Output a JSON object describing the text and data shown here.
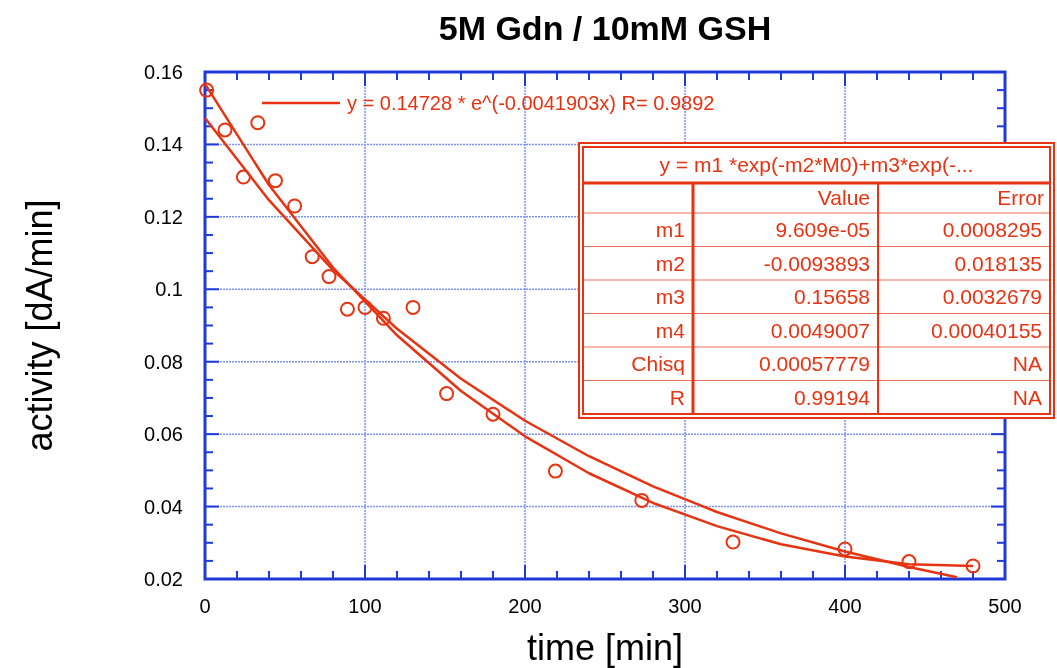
{
  "chart_data": {
    "type": "scatter",
    "title": "5M Gdn / 10mM GSH",
    "xlabel": "time [min]",
    "ylabel": "activity [dA/min]",
    "xlim": [
      0,
      500
    ],
    "ylim": [
      0.02,
      0.16
    ],
    "xticks": [
      0,
      {
        "value": 20,
        "label": null
      },
      {
        "value": 40,
        "label": null
      },
      {
        "value": 60,
        "label": null
      },
      {
        "value": 80,
        "label": null
      },
      100,
      {
        "value": 120,
        "label": null
      },
      {
        "value": 140,
        "label": null
      },
      {
        "value": 160,
        "label": null
      },
      {
        "value": 180,
        "label": null
      },
      200,
      {
        "value": 220,
        "label": null
      },
      {
        "value": 240,
        "label": null
      },
      {
        "value": 260,
        "label": null
      },
      {
        "value": 280,
        "label": null
      },
      300,
      {
        "value": 320,
        "label": null
      },
      {
        "value": 340,
        "label": null
      },
      {
        "value": 360,
        "label": null
      },
      {
        "value": 380,
        "label": null
      },
      400,
      {
        "value": 420,
        "label": null
      },
      {
        "value": 440,
        "label": null
      },
      {
        "value": 460,
        "label": null
      },
      {
        "value": 480,
        "label": null
      },
      500
    ],
    "yticks": [
      0.02,
      {
        "value": 0.025,
        "label": null
      },
      {
        "value": 0.03,
        "label": null
      },
      {
        "value": 0.035,
        "label": null
      },
      0.04,
      {
        "value": 0.045,
        "label": null
      },
      {
        "value": 0.05,
        "label": null
      },
      {
        "value": 0.055,
        "label": null
      },
      0.06,
      {
        "value": 0.065,
        "label": null
      },
      {
        "value": 0.07,
        "label": null
      },
      {
        "value": 0.075,
        "label": null
      },
      0.08,
      {
        "value": 0.085,
        "label": null
      },
      {
        "value": 0.09,
        "label": null
      },
      {
        "value": 0.095,
        "label": null
      },
      0.1,
      {
        "value": 0.105,
        "label": null
      },
      {
        "value": 0.11,
        "label": null
      },
      {
        "value": 0.115,
        "label": null
      },
      0.12,
      {
        "value": 0.125,
        "label": null
      },
      {
        "value": 0.13,
        "label": null
      },
      {
        "value": 0.135,
        "label": null
      },
      0.14,
      {
        "value": 0.145,
        "label": null
      },
      {
        "value": 0.15,
        "label": null
      },
      {
        "value": 0.155,
        "label": null
      },
      0.16
    ],
    "grid": true,
    "legend": "top",
    "marker": "circle",
    "series": [
      {
        "color": "#e63312",
        "x": [
          1,
          12.5,
          24,
          33,
          44,
          56,
          67,
          77.5,
          89,
          100,
          111.5,
          130,
          151,
          180,
          219,
          273,
          330,
          400,
          440,
          480
        ],
        "values": [
          0.155,
          0.144,
          0.131,
          0.146,
          0.13,
          0.123,
          0.109,
          0.1035,
          0.0945,
          0.095,
          0.092,
          0.095,
          0.0712,
          0.0655,
          0.0498,
          0.0417,
          0.0302,
          0.0283,
          0.0248,
          0.0236
        ]
      },
      {
        "type": "line",
        "name": "y = 0.14728 * e^(-0.0041903x) R= 0.9892",
        "color": "#e63312",
        "marker": "none",
        "x": [
          0,
          40,
          80,
          120,
          160,
          200,
          240,
          280,
          320,
          360,
          400,
          440,
          470
        ],
        "values": [
          0.1473,
          0.1246,
          0.1053,
          0.0891,
          0.0753,
          0.0637,
          0.0539,
          0.0456,
          0.0385,
          0.0326,
          0.0276,
          0.0233,
          0.0205
        ]
      },
      {
        "type": "line",
        "color": "#e63312",
        "marker": "none",
        "x": [
          0,
          40,
          80,
          120,
          160,
          200,
          240,
          280,
          320,
          360,
          400,
          440,
          480
        ],
        "values": [
          0.1567,
          0.1288,
          0.106,
          0.0873,
          0.0719,
          0.0594,
          0.0492,
          0.041,
          0.0346,
          0.0296,
          0.0262,
          0.0241,
          0.0236
        ]
      }
    ],
    "annotations": [
      "y = m1 *exp(-m2*M0)+m3*exp(-...",
      "Value",
      "Error",
      "m1",
      "9.609e-05",
      "0.0008295",
      "m2",
      "-0.0093893",
      "0.018135",
      "m3",
      "0.15658",
      "0.0032679",
      "m4",
      "0.0049007",
      "0.00040155",
      "Chisq",
      "0.00057779",
      "NA",
      "R",
      "0.99194",
      "NA"
    ]
  }
}
